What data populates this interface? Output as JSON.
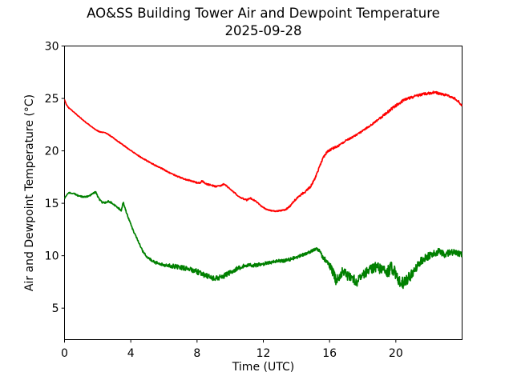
{
  "chart_data": {
    "type": "line",
    "title": "AO&SS Building Tower Air and Dewpoint Temperature",
    "subtitle": "2025-09-28",
    "xlabel": "Time (UTC)",
    "ylabel": "Air and Dewpoint Temperature (°C)",
    "xlim": [
      0,
      24
    ],
    "ylim": [
      2,
      30
    ],
    "xticks": [
      0,
      4,
      8,
      12,
      16,
      20
    ],
    "yticks": [
      5,
      10,
      15,
      20,
      25,
      30
    ],
    "grid": false,
    "legend": false,
    "background_color": "#ffffff",
    "axis_color": "#000000",
    "series": [
      {
        "name": "Air Temperature",
        "color": "#ff0000",
        "keypoints": [
          [
            0,
            24.9
          ],
          [
            0.1,
            24.45
          ],
          [
            0.25,
            24.1
          ],
          [
            0.45,
            23.85
          ],
          [
            0.7,
            23.5
          ],
          [
            1.0,
            23.1
          ],
          [
            1.3,
            22.7
          ],
          [
            1.6,
            22.35
          ],
          [
            1.9,
            22.0
          ],
          [
            2.15,
            21.8
          ],
          [
            2.5,
            21.7
          ],
          [
            2.8,
            21.4
          ],
          [
            3.1,
            21.05
          ],
          [
            3.5,
            20.6
          ],
          [
            3.9,
            20.15
          ],
          [
            4.3,
            19.7
          ],
          [
            4.7,
            19.3
          ],
          [
            5.1,
            18.95
          ],
          [
            5.5,
            18.6
          ],
          [
            5.9,
            18.3
          ],
          [
            6.3,
            17.95
          ],
          [
            6.7,
            17.65
          ],
          [
            7.1,
            17.4
          ],
          [
            7.5,
            17.2
          ],
          [
            7.9,
            17.0
          ],
          [
            8.15,
            16.9
          ],
          [
            8.3,
            17.15
          ],
          [
            8.5,
            16.85
          ],
          [
            8.8,
            16.75
          ],
          [
            9.1,
            16.6
          ],
          [
            9.45,
            16.7
          ],
          [
            9.65,
            16.85
          ],
          [
            9.85,
            16.55
          ],
          [
            10.15,
            16.15
          ],
          [
            10.45,
            15.75
          ],
          [
            10.75,
            15.45
          ],
          [
            11.0,
            15.3
          ],
          [
            11.2,
            15.5
          ],
          [
            11.45,
            15.3
          ],
          [
            11.65,
            15.05
          ],
          [
            11.9,
            14.7
          ],
          [
            12.15,
            14.45
          ],
          [
            12.45,
            14.3
          ],
          [
            12.75,
            14.25
          ],
          [
            13.05,
            14.3
          ],
          [
            13.35,
            14.4
          ],
          [
            13.6,
            14.7
          ],
          [
            13.85,
            15.2
          ],
          [
            14.1,
            15.6
          ],
          [
            14.35,
            15.9
          ],
          [
            14.6,
            16.2
          ],
          [
            14.85,
            16.6
          ],
          [
            15.1,
            17.3
          ],
          [
            15.35,
            18.3
          ],
          [
            15.6,
            19.3
          ],
          [
            15.85,
            19.9
          ],
          [
            16.1,
            20.15
          ],
          [
            16.35,
            20.35
          ],
          [
            16.65,
            20.6
          ],
          [
            16.95,
            20.95
          ],
          [
            17.25,
            21.2
          ],
          [
            17.55,
            21.45
          ],
          [
            17.85,
            21.75
          ],
          [
            18.15,
            22.1
          ],
          [
            18.45,
            22.4
          ],
          [
            18.75,
            22.75
          ],
          [
            19.05,
            23.1
          ],
          [
            19.35,
            23.5
          ],
          [
            19.65,
            23.9
          ],
          [
            19.95,
            24.25
          ],
          [
            20.25,
            24.6
          ],
          [
            20.55,
            24.9
          ],
          [
            20.85,
            25.05
          ],
          [
            21.15,
            25.2
          ],
          [
            21.45,
            25.35
          ],
          [
            21.75,
            25.45
          ],
          [
            22.05,
            25.5
          ],
          [
            22.35,
            25.6
          ],
          [
            22.65,
            25.45
          ],
          [
            22.95,
            25.35
          ],
          [
            23.25,
            25.2
          ],
          [
            23.55,
            25.0
          ],
          [
            23.8,
            24.7
          ],
          [
            23.98,
            24.3
          ]
        ],
        "noise_envelope": [
          [
            0,
            0.03
          ],
          [
            6,
            0.05
          ],
          [
            7.5,
            0.07
          ],
          [
            9,
            0.07
          ],
          [
            10,
            0.05
          ],
          [
            11,
            0.07
          ],
          [
            12,
            0.04
          ],
          [
            13.5,
            0.06
          ],
          [
            14.5,
            0.1
          ],
          [
            15.5,
            0.08
          ],
          [
            16.2,
            0.12
          ],
          [
            17,
            0.08
          ],
          [
            18.5,
            0.08
          ],
          [
            19.5,
            0.12
          ],
          [
            20.5,
            0.13
          ],
          [
            21.5,
            0.12
          ],
          [
            22.5,
            0.12
          ],
          [
            23.5,
            0.1
          ],
          [
            23.98,
            0.08
          ]
        ]
      },
      {
        "name": "Dewpoint Temperature",
        "color": "#008000",
        "keypoints": [
          [
            0,
            15.45
          ],
          [
            0.15,
            15.85
          ],
          [
            0.3,
            16.0
          ],
          [
            0.55,
            15.95
          ],
          [
            0.85,
            15.7
          ],
          [
            1.15,
            15.6
          ],
          [
            1.45,
            15.65
          ],
          [
            1.75,
            16.0
          ],
          [
            1.9,
            16.05
          ],
          [
            2.05,
            15.5
          ],
          [
            2.25,
            15.1
          ],
          [
            2.45,
            15.05
          ],
          [
            2.65,
            15.2
          ],
          [
            2.85,
            15.05
          ],
          [
            3.05,
            14.8
          ],
          [
            3.25,
            14.55
          ],
          [
            3.42,
            14.3
          ],
          [
            3.55,
            15.1
          ],
          [
            3.7,
            14.3
          ],
          [
            3.85,
            13.6
          ],
          [
            4.0,
            13.0
          ],
          [
            4.2,
            12.2
          ],
          [
            4.45,
            11.4
          ],
          [
            4.7,
            10.5
          ],
          [
            4.95,
            9.9
          ],
          [
            5.2,
            9.6
          ],
          [
            5.5,
            9.35
          ],
          [
            5.8,
            9.2
          ],
          [
            6.2,
            9.1
          ],
          [
            6.6,
            9.0
          ],
          [
            7.0,
            8.9
          ],
          [
            7.4,
            8.75
          ],
          [
            7.8,
            8.6
          ],
          [
            8.2,
            8.35
          ],
          [
            8.6,
            8.05
          ],
          [
            9.0,
            7.85
          ],
          [
            9.3,
            7.9
          ],
          [
            9.6,
            8.05
          ],
          [
            10.0,
            8.4
          ],
          [
            10.4,
            8.75
          ],
          [
            10.8,
            9.0
          ],
          [
            11.2,
            9.1
          ],
          [
            11.6,
            9.1
          ],
          [
            12.0,
            9.2
          ],
          [
            12.4,
            9.35
          ],
          [
            12.8,
            9.5
          ],
          [
            13.2,
            9.5
          ],
          [
            13.6,
            9.65
          ],
          [
            14.0,
            9.85
          ],
          [
            14.4,
            10.1
          ],
          [
            14.8,
            10.35
          ],
          [
            15.1,
            10.6
          ],
          [
            15.3,
            10.6
          ],
          [
            15.55,
            10.0
          ],
          [
            15.8,
            9.5
          ],
          [
            16.05,
            9.0
          ],
          [
            16.25,
            8.2
          ],
          [
            16.4,
            7.6
          ],
          [
            16.6,
            8.15
          ],
          [
            16.8,
            8.5
          ],
          [
            17.05,
            8.1
          ],
          [
            17.35,
            7.8
          ],
          [
            17.65,
            7.5
          ],
          [
            17.95,
            7.95
          ],
          [
            18.25,
            8.5
          ],
          [
            18.55,
            8.8
          ],
          [
            18.85,
            8.9
          ],
          [
            19.15,
            8.6
          ],
          [
            19.45,
            8.4
          ],
          [
            19.75,
            8.8
          ],
          [
            20.05,
            8.1
          ],
          [
            20.3,
            7.3
          ],
          [
            20.6,
            7.55
          ],
          [
            20.9,
            8.1
          ],
          [
            21.15,
            8.6
          ],
          [
            21.45,
            9.35
          ],
          [
            21.75,
            9.8
          ],
          [
            22.05,
            10.0
          ],
          [
            22.35,
            10.2
          ],
          [
            22.65,
            10.45
          ],
          [
            22.95,
            10.1
          ],
          [
            23.25,
            10.3
          ],
          [
            23.55,
            10.35
          ],
          [
            23.8,
            10.2
          ],
          [
            23.98,
            10.1
          ]
        ],
        "noise_envelope": [
          [
            0,
            0.05
          ],
          [
            2,
            0.08
          ],
          [
            3,
            0.08
          ],
          [
            4,
            0.08
          ],
          [
            5,
            0.12
          ],
          [
            6,
            0.18
          ],
          [
            7,
            0.22
          ],
          [
            8,
            0.25
          ],
          [
            9,
            0.25
          ],
          [
            10,
            0.22
          ],
          [
            11,
            0.18
          ],
          [
            12,
            0.18
          ],
          [
            13,
            0.15
          ],
          [
            14,
            0.15
          ],
          [
            15,
            0.12
          ],
          [
            15.6,
            0.25
          ],
          [
            16.2,
            0.45
          ],
          [
            17,
            0.5
          ],
          [
            18,
            0.45
          ],
          [
            19,
            0.5
          ],
          [
            19.8,
            0.65
          ],
          [
            20.3,
            0.6
          ],
          [
            21,
            0.5
          ],
          [
            21.5,
            0.4
          ],
          [
            22,
            0.35
          ],
          [
            23,
            0.3
          ],
          [
            23.98,
            0.28
          ]
        ]
      }
    ]
  }
}
